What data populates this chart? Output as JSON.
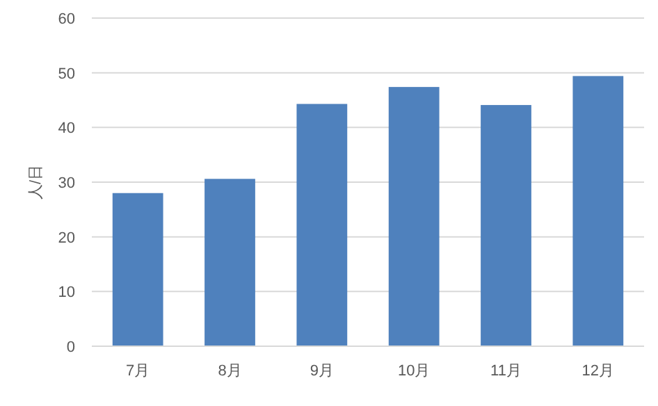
{
  "chart_data": {
    "type": "bar",
    "ylabel": "人/日",
    "categories": [
      "7月",
      "8月",
      "9月",
      "10月",
      "11月",
      "12月"
    ],
    "values": [
      28.0,
      30.6,
      44.3,
      47.4,
      44.1,
      49.4
    ],
    "color": "#4f81bd",
    "ylim": [
      0,
      60
    ],
    "yticks": [
      0,
      10,
      20,
      30,
      40,
      50,
      60
    ],
    "grid": "y"
  }
}
